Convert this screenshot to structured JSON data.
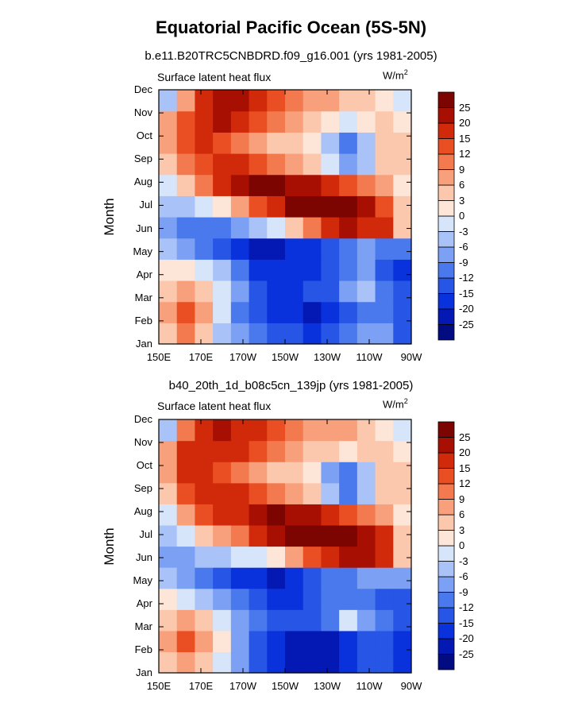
{
  "main_title": "Equatorial Pacific Ocean (5S-5N)",
  "chart_data": [
    {
      "type": "heatmap",
      "title": "b.e11.B20TRC5CNBDRD.f09_g16.001 (yrs 1981-2005)",
      "left_label": "Surface latent heat flux",
      "units": "W/m",
      "units_sup": "2",
      "ylabel": "Month",
      "x_tick_labels": [
        "150E",
        "170E",
        "170W",
        "150W",
        "130W",
        "110W",
        "90W"
      ],
      "y_tick_labels": [
        "Jan",
        "Feb",
        "Mar",
        "Apr",
        "May",
        "Jun",
        "Jul",
        "Aug",
        "Sep",
        "Oct",
        "Nov",
        "Dec"
      ],
      "colorbar_labels": [
        "25",
        "20",
        "15",
        "12",
        "9",
        "6",
        "3",
        "0",
        "-3",
        "-6",
        "-9",
        "-12",
        "-15",
        "-20",
        "-25"
      ],
      "z": [
        [
          3,
          9,
          3,
          -6,
          -9,
          -12,
          -15,
          -15,
          -18,
          -15,
          -12,
          -9,
          -9,
          -15
        ],
        [
          6,
          12,
          6,
          -3,
          -12,
          -15,
          -18,
          -18,
          -22,
          -20,
          -15,
          -12,
          -12,
          -15
        ],
        [
          3,
          6,
          3,
          -3,
          -9,
          -15,
          -18,
          -18,
          -15,
          -15,
          -9,
          -6,
          -12,
          -15
        ],
        [
          0,
          0,
          -3,
          -6,
          -12,
          -18,
          -20,
          -20,
          -18,
          -15,
          -12,
          -9,
          -15,
          -18
        ],
        [
          -6,
          -9,
          -12,
          -15,
          -18,
          -22,
          -22,
          -20,
          -18,
          -15,
          -12,
          -9,
          -12,
          -12
        ],
        [
          -9,
          -12,
          -12,
          -12,
          -9,
          -6,
          -3,
          3,
          9,
          15,
          20,
          18,
          15,
          3
        ],
        [
          -6,
          -6,
          -3,
          0,
          6,
          12,
          18,
          25,
          28,
          28,
          25,
          20,
          12,
          3
        ],
        [
          -3,
          3,
          9,
          15,
          20,
          25,
          25,
          22,
          20,
          15,
          12,
          9,
          6,
          0
        ],
        [
          3,
          9,
          12,
          15,
          15,
          12,
          9,
          6,
          3,
          -3,
          -9,
          -6,
          3,
          3
        ],
        [
          6,
          12,
          15,
          12,
          9,
          6,
          3,
          3,
          0,
          -6,
          -12,
          -6,
          3,
          3
        ],
        [
          6,
          12,
          18,
          20,
          18,
          12,
          9,
          6,
          3,
          0,
          -3,
          0,
          3,
          0
        ],
        [
          -6,
          6,
          15,
          22,
          22,
          15,
          12,
          9,
          6,
          6,
          3,
          3,
          0,
          -3
        ]
      ]
    },
    {
      "type": "heatmap",
      "title": "b40_20th_1d_b08c5cn_139jp (yrs 1981-2005)",
      "left_label": "Surface latent heat flux",
      "units": "W/m",
      "units_sup": "2",
      "ylabel": "Month",
      "x_tick_labels": [
        "150E",
        "170E",
        "170W",
        "150W",
        "130W",
        "110W",
        "90W"
      ],
      "y_tick_labels": [
        "Jan",
        "Feb",
        "Mar",
        "Apr",
        "May",
        "Jun",
        "Jul",
        "Aug",
        "Sep",
        "Oct",
        "Nov",
        "Dec"
      ],
      "colorbar_labels": [
        "25",
        "20",
        "15",
        "12",
        "9",
        "6",
        "3",
        "0",
        "-3",
        "-6",
        "-9",
        "-12",
        "-15",
        "-20",
        "-25"
      ],
      "z": [
        [
          3,
          6,
          3,
          -3,
          -9,
          -15,
          -20,
          -22,
          -25,
          -22,
          -20,
          -15,
          -15,
          -18
        ],
        [
          6,
          12,
          6,
          0,
          -9,
          -15,
          -20,
          -22,
          -25,
          -25,
          -20,
          -15,
          -15,
          -18
        ],
        [
          3,
          6,
          3,
          -3,
          -9,
          -12,
          -15,
          -15,
          -15,
          -12,
          -3,
          -9,
          -12,
          -15
        ],
        [
          0,
          -3,
          -6,
          -9,
          -12,
          -15,
          -18,
          -18,
          -15,
          -12,
          -12,
          -12,
          -15,
          -15
        ],
        [
          -6,
          -9,
          -12,
          -15,
          -18,
          -20,
          -22,
          -18,
          -15,
          -12,
          -12,
          -9,
          -9,
          -9
        ],
        [
          -9,
          -9,
          -6,
          -6,
          -3,
          -3,
          0,
          6,
          12,
          18,
          22,
          22,
          18,
          3
        ],
        [
          -6,
          -3,
          3,
          6,
          9,
          15,
          22,
          28,
          28,
          28,
          25,
          22,
          15,
          3
        ],
        [
          -3,
          6,
          12,
          15,
          15,
          20,
          25,
          22,
          20,
          15,
          12,
          9,
          6,
          0
        ],
        [
          3,
          12,
          15,
          15,
          15,
          12,
          9,
          6,
          3,
          -6,
          -12,
          -6,
          3,
          3
        ],
        [
          6,
          15,
          15,
          12,
          9,
          6,
          3,
          3,
          0,
          -9,
          -12,
          -6,
          3,
          3
        ],
        [
          6,
          15,
          18,
          18,
          15,
          12,
          9,
          6,
          3,
          3,
          0,
          3,
          3,
          0
        ],
        [
          -6,
          9,
          18,
          22,
          18,
          15,
          12,
          9,
          6,
          6,
          6,
          3,
          0,
          -3
        ]
      ]
    }
  ],
  "colors": {
    "levels": [
      -25,
      -20,
      -15,
      -12,
      -9,
      -6,
      -3,
      0,
      3,
      6,
      9,
      12,
      15,
      20,
      25
    ],
    "fills": [
      "#020b82",
      "#0418b4",
      "#0a32dc",
      "#2755e6",
      "#4a79ee",
      "#7ba0f4",
      "#a9c2f8",
      "#d7e5fb",
      "#fde6d8",
      "#fbc8ad",
      "#f8a07b",
      "#f27a4e",
      "#ea4e23",
      "#d02a0a",
      "#a80f03",
      "#7d0501"
    ]
  }
}
